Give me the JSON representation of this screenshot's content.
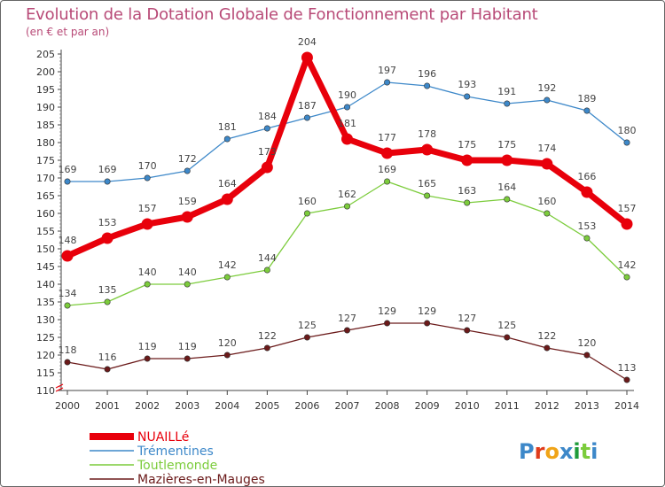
{
  "title": "Evolution de la Dotation Globale de Fonctionnement par Habitant",
  "subtitle": "(en € et par an)",
  "brand": "Proxiti",
  "chart_data": {
    "type": "line",
    "x": [
      "2000",
      "2001",
      "2002",
      "2003",
      "2004",
      "2005",
      "2006",
      "2007",
      "2008",
      "2009",
      "2010",
      "2011",
      "2012",
      "2013",
      "2014"
    ],
    "ylim": [
      110,
      205
    ],
    "yticks": [
      110,
      115,
      120,
      125,
      130,
      135,
      140,
      145,
      150,
      155,
      160,
      165,
      170,
      175,
      180,
      185,
      190,
      195,
      200,
      205
    ],
    "grid": false,
    "legend_position": "bottom-left",
    "series": [
      {
        "name": "NUAILLé",
        "color": "#e8000b",
        "values": [
          148,
          153,
          157,
          159,
          164,
          173,
          204,
          181,
          177,
          178,
          175,
          175,
          174,
          166,
          157
        ]
      },
      {
        "name": "Trémentines",
        "color": "#3d88c9",
        "values": [
          169,
          169,
          170,
          172,
          181,
          184,
          187,
          190,
          197,
          196,
          193,
          191,
          192,
          189,
          180
        ]
      },
      {
        "name": "Toutlemonde",
        "color": "#7ccc3c",
        "values": [
          134,
          135,
          140,
          140,
          142,
          144,
          160,
          162,
          169,
          165,
          163,
          164,
          160,
          153,
          142
        ]
      },
      {
        "name": "Mazières-en-Mauges",
        "color": "#6b1a1a",
        "values": [
          118,
          116,
          119,
          119,
          120,
          122,
          125,
          127,
          129,
          129,
          127,
          125,
          122,
          120,
          113
        ]
      }
    ]
  }
}
